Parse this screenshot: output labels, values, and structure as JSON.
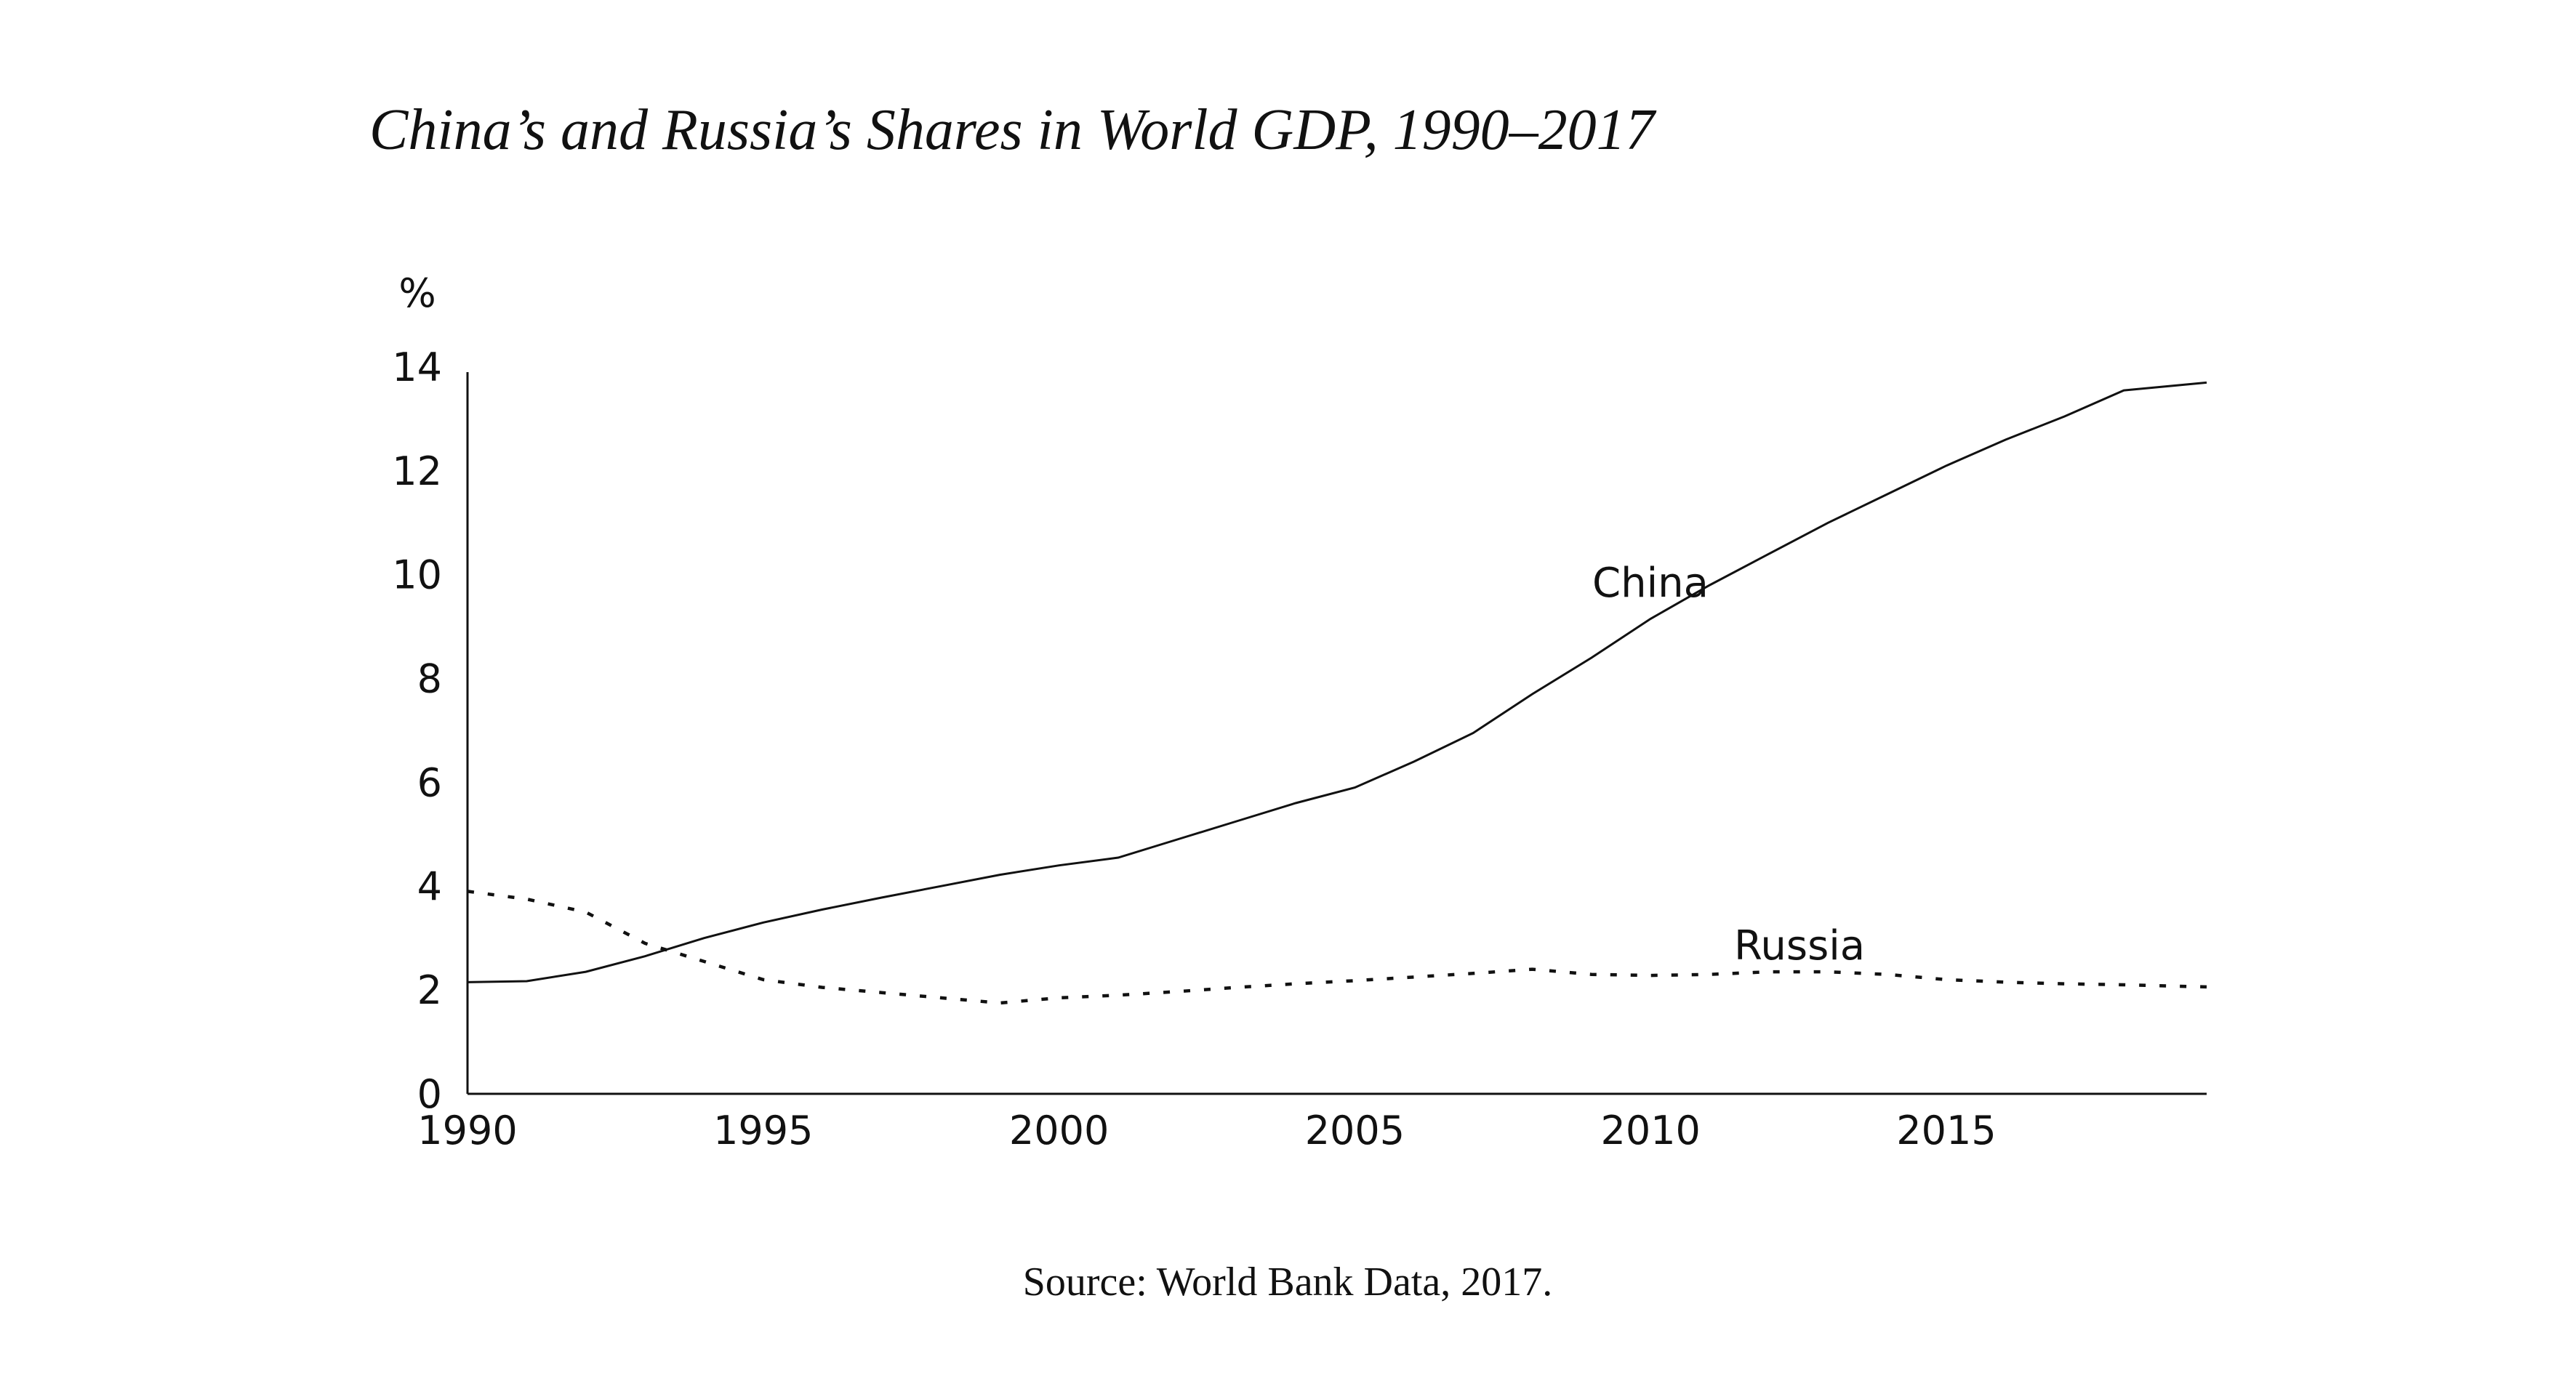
{
  "chart_data": {
    "type": "line",
    "title": "China’s and Russia’s Shares in World GDP, 1990–2017",
    "ylabel": "%",
    "xlabel": "",
    "source": "Source: World Bank Data, 2017.",
    "xlim": [
      1990,
      2019.4
    ],
    "ylim": [
      0,
      14
    ],
    "x_ticks": [
      1990,
      1995,
      2000,
      2005,
      2010,
      2015
    ],
    "y_ticks": [
      0,
      2,
      4,
      6,
      8,
      10,
      12,
      14
    ],
    "grid": false,
    "legend": "none",
    "series": [
      {
        "name": "China",
        "style": "solid",
        "points": [
          [
            1990.0,
            2.15
          ],
          [
            1991.0,
            2.17
          ],
          [
            1992.0,
            2.35
          ],
          [
            1993.0,
            2.65
          ],
          [
            1994.0,
            3.0
          ],
          [
            1995.0,
            3.3
          ],
          [
            1996.0,
            3.55
          ],
          [
            1997.0,
            3.78
          ],
          [
            1998.0,
            4.0
          ],
          [
            1999.0,
            4.22
          ],
          [
            2000.0,
            4.4
          ],
          [
            2001.0,
            4.55
          ],
          [
            2002.0,
            4.9
          ],
          [
            2003.0,
            5.25
          ],
          [
            2004.0,
            5.6
          ],
          [
            2005.0,
            5.9
          ],
          [
            2006.0,
            6.4
          ],
          [
            2007.0,
            6.95
          ],
          [
            2008.0,
            7.7
          ],
          [
            2009.0,
            8.4
          ],
          [
            2010.0,
            9.15
          ],
          [
            2011.0,
            9.8
          ],
          [
            2012.0,
            10.4
          ],
          [
            2013.0,
            11.0
          ],
          [
            2014.0,
            11.55
          ],
          [
            2015.0,
            12.1
          ],
          [
            2016.0,
            12.6
          ],
          [
            2017.0,
            13.05
          ],
          [
            2018.0,
            13.55
          ],
          [
            2019.4,
            13.7
          ]
        ]
      },
      {
        "name": "Russia",
        "style": "dashed",
        "points": [
          [
            1990.0,
            3.9
          ],
          [
            1991.0,
            3.75
          ],
          [
            1992.0,
            3.5
          ],
          [
            1993.0,
            2.9
          ],
          [
            1994.0,
            2.55
          ],
          [
            1995.0,
            2.2
          ],
          [
            1996.0,
            2.05
          ],
          [
            1997.0,
            1.95
          ],
          [
            1998.0,
            1.85
          ],
          [
            1999.0,
            1.75
          ],
          [
            2000.0,
            1.85
          ],
          [
            2001.0,
            1.9
          ],
          [
            2002.0,
            1.97
          ],
          [
            2003.0,
            2.05
          ],
          [
            2004.0,
            2.12
          ],
          [
            2005.0,
            2.18
          ],
          [
            2006.0,
            2.25
          ],
          [
            2007.0,
            2.32
          ],
          [
            2008.0,
            2.4
          ],
          [
            2009.0,
            2.3
          ],
          [
            2010.0,
            2.28
          ],
          [
            2011.0,
            2.3
          ],
          [
            2012.0,
            2.35
          ],
          [
            2013.0,
            2.35
          ],
          [
            2014.0,
            2.3
          ],
          [
            2015.0,
            2.2
          ],
          [
            2016.0,
            2.15
          ],
          [
            2017.0,
            2.12
          ],
          [
            2018.0,
            2.1
          ],
          [
            2019.4,
            2.06
          ]
        ]
      }
    ]
  }
}
